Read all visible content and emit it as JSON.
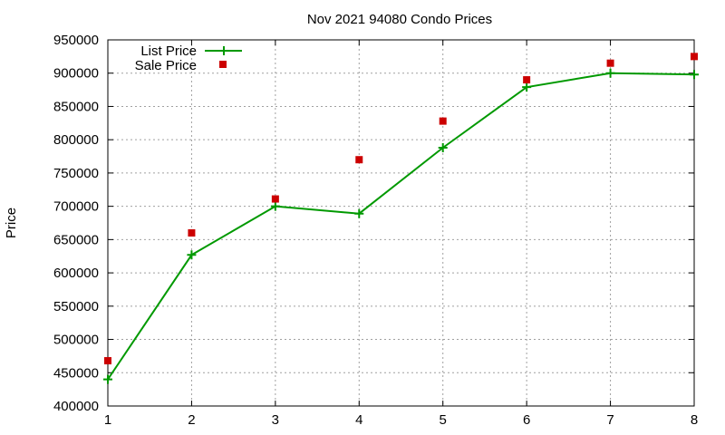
{
  "chart_data": {
    "type": "line",
    "title": "Nov 2021 94080 Condo Prices",
    "xlabel": "",
    "ylabel": "Price",
    "x": [
      1,
      2,
      3,
      4,
      5,
      6,
      7,
      8
    ],
    "xlim": [
      1,
      8
    ],
    "ylim": [
      400000,
      950000
    ],
    "x_ticks": [
      "1",
      "2",
      "3",
      "4",
      "5",
      "6",
      "7",
      "8"
    ],
    "y_ticks": [
      "400000",
      "450000",
      "500000",
      "550000",
      "600000",
      "650000",
      "700000",
      "750000",
      "800000",
      "850000",
      "900000",
      "950000"
    ],
    "grid": true,
    "legend_position": "top-left",
    "series": [
      {
        "name": "List Price",
        "style": "linespoints",
        "marker": "plus",
        "color": "#009900",
        "values": [
          440000,
          627000,
          700000,
          689000,
          788000,
          879000,
          900000,
          898000
        ]
      },
      {
        "name": "Sale Price",
        "style": "points",
        "marker": "square",
        "color": "#cc0000",
        "values": [
          468000,
          660000,
          711000,
          770000,
          828000,
          890000,
          915000,
          925000
        ]
      }
    ]
  }
}
